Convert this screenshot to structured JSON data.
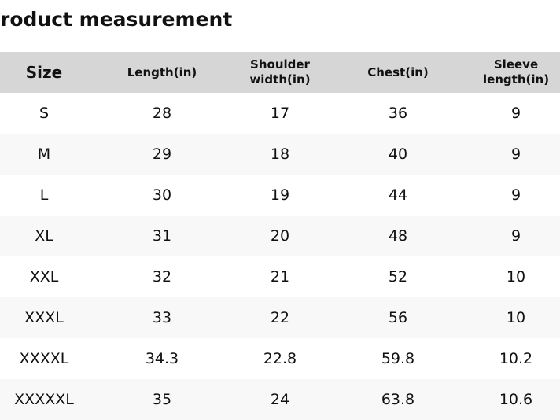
{
  "title": "roduct measurement",
  "table": {
    "headers": [
      [
        "Size"
      ],
      [
        "Length(in)"
      ],
      [
        "Shoulder",
        "width(in)"
      ],
      [
        "Chest(in)"
      ],
      [
        "Sleeve",
        "length(in)"
      ]
    ],
    "rows": [
      [
        "S",
        "28",
        "17",
        "36",
        "9"
      ],
      [
        "M",
        "29",
        "18",
        "40",
        "9"
      ],
      [
        "L",
        "30",
        "19",
        "44",
        "9"
      ],
      [
        "XL",
        "31",
        "20",
        "48",
        "9"
      ],
      [
        "XXL",
        "32",
        "21",
        "52",
        "10"
      ],
      [
        "XXXL",
        "33",
        "22",
        "56",
        "10"
      ],
      [
        "XXXXL",
        "34.3",
        "22.8",
        "59.8",
        "10.2"
      ],
      [
        "XXXXXL",
        "35",
        "24",
        "63.8",
        "10.6"
      ]
    ]
  },
  "colors": {
    "header_bg": "#d6d6d6",
    "alt_row_bg": "#f8f8f8"
  }
}
